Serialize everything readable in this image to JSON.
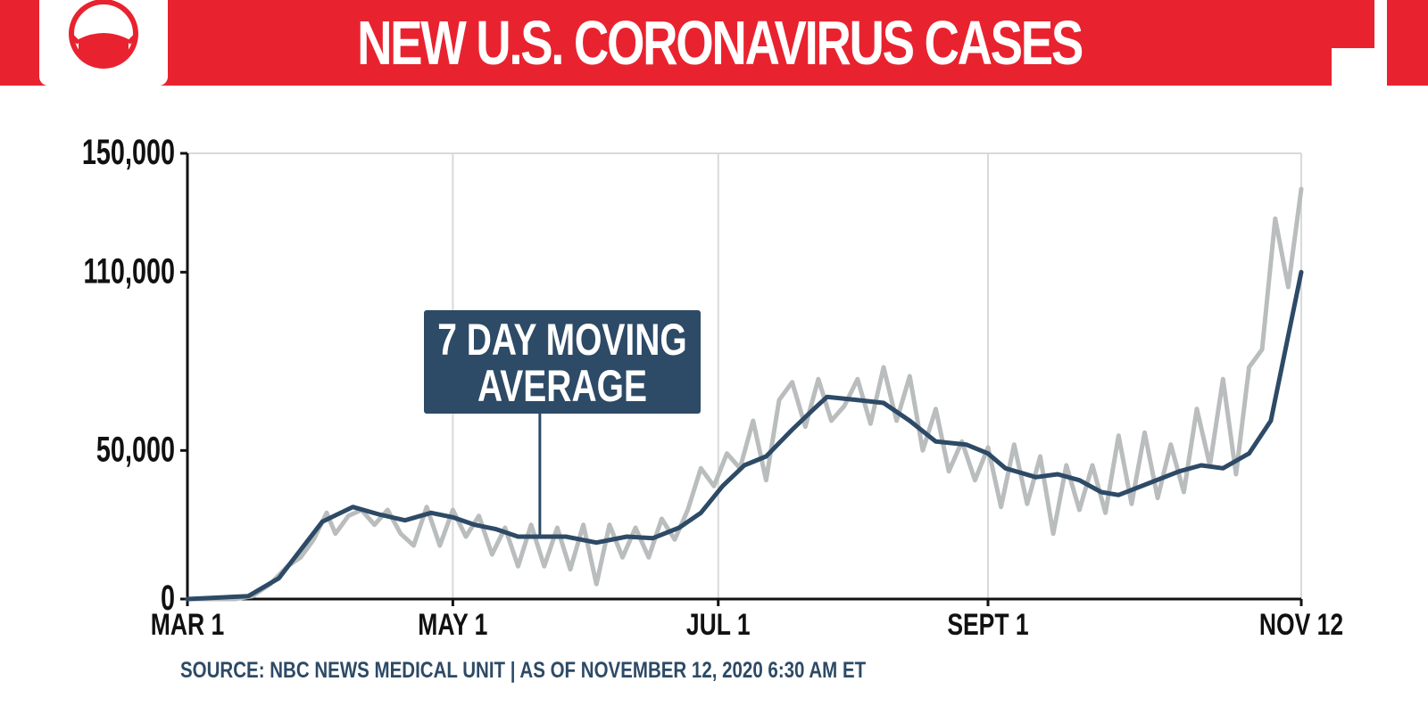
{
  "header": {
    "title": "NEW U.S. CORONAVIRUS CASES",
    "logo_icon": "face-mask-icon",
    "accent_color": "#e8232f"
  },
  "footer": {
    "source": "SOURCE: NBC NEWS MEDICAL UNIT | AS OF  NOVEMBER 12, 2020 6:30 AM ET"
  },
  "chart_data": {
    "type": "line",
    "title": "NEW U.S. CORONAVIRUS CASES",
    "xlabel": "",
    "ylabel": "",
    "ylim": [
      0,
      150000
    ],
    "xlim": [
      "2020-03-01",
      "2020-11-12"
    ],
    "grid": true,
    "x_ticks": [
      {
        "date": "2020-03-01",
        "label": "MAR 1"
      },
      {
        "date": "2020-05-01",
        "label": "MAY 1"
      },
      {
        "date": "2020-07-01",
        "label": "JUL 1"
      },
      {
        "date": "2020-09-01",
        "label": "SEPT 1"
      },
      {
        "date": "2020-11-12",
        "label": "NOV 12"
      }
    ],
    "y_ticks": [
      {
        "value": 0,
        "label": "0"
      },
      {
        "value": 50000,
        "label": "50,000"
      },
      {
        "value": 110000,
        "label": "110,000"
      },
      {
        "value": 150000,
        "label": "150,000"
      }
    ],
    "annotation": {
      "lines": [
        "7 DAY MOVING",
        "AVERAGE"
      ],
      "pointer_date": "2020-05-21",
      "pointer_value": 21000
    },
    "series": [
      {
        "role": "daily",
        "color": "#b9bdbd",
        "points": [
          [
            "2020-03-01",
            0
          ],
          [
            "2020-03-12",
            0
          ],
          [
            "2020-03-16",
            1000
          ],
          [
            "2020-03-20",
            5000
          ],
          [
            "2020-03-24",
            11000
          ],
          [
            "2020-03-27",
            14000
          ],
          [
            "2020-03-30",
            20000
          ],
          [
            "2020-04-02",
            29000
          ],
          [
            "2020-04-04",
            22000
          ],
          [
            "2020-04-07",
            28000
          ],
          [
            "2020-04-10",
            30000
          ],
          [
            "2020-04-13",
            25000
          ],
          [
            "2020-04-16",
            30000
          ],
          [
            "2020-04-19",
            22000
          ],
          [
            "2020-04-22",
            18000
          ],
          [
            "2020-04-25",
            31000
          ],
          [
            "2020-04-28",
            18000
          ],
          [
            "2020-05-01",
            30000
          ],
          [
            "2020-05-04",
            21000
          ],
          [
            "2020-05-07",
            28000
          ],
          [
            "2020-05-10",
            15000
          ],
          [
            "2020-05-13",
            24000
          ],
          [
            "2020-05-16",
            11000
          ],
          [
            "2020-05-19",
            25000
          ],
          [
            "2020-05-22",
            11000
          ],
          [
            "2020-05-25",
            24000
          ],
          [
            "2020-05-28",
            10000
          ],
          [
            "2020-05-31",
            25000
          ],
          [
            "2020-06-03",
            5000
          ],
          [
            "2020-06-06",
            25000
          ],
          [
            "2020-06-09",
            14000
          ],
          [
            "2020-06-12",
            24000
          ],
          [
            "2020-06-15",
            14000
          ],
          [
            "2020-06-18",
            27000
          ],
          [
            "2020-06-21",
            20000
          ],
          [
            "2020-06-24",
            30000
          ],
          [
            "2020-06-27",
            44000
          ],
          [
            "2020-06-30",
            38000
          ],
          [
            "2020-07-03",
            49000
          ],
          [
            "2020-07-06",
            44000
          ],
          [
            "2020-07-09",
            60000
          ],
          [
            "2020-07-12",
            40000
          ],
          [
            "2020-07-15",
            67000
          ],
          [
            "2020-07-18",
            73000
          ],
          [
            "2020-07-21",
            58000
          ],
          [
            "2020-07-24",
            74000
          ],
          [
            "2020-07-27",
            60000
          ],
          [
            "2020-07-30",
            65000
          ],
          [
            "2020-08-02",
            74000
          ],
          [
            "2020-08-05",
            59000
          ],
          [
            "2020-08-08",
            78000
          ],
          [
            "2020-08-11",
            60000
          ],
          [
            "2020-08-14",
            75000
          ],
          [
            "2020-08-17",
            50000
          ],
          [
            "2020-08-20",
            64000
          ],
          [
            "2020-08-23",
            43000
          ],
          [
            "2020-08-26",
            53000
          ],
          [
            "2020-08-29",
            40000
          ],
          [
            "2020-09-01",
            51000
          ],
          [
            "2020-09-04",
            31000
          ],
          [
            "2020-09-07",
            52000
          ],
          [
            "2020-09-10",
            32000
          ],
          [
            "2020-09-13",
            48000
          ],
          [
            "2020-09-16",
            22000
          ],
          [
            "2020-09-19",
            45000
          ],
          [
            "2020-09-22",
            30000
          ],
          [
            "2020-09-25",
            45000
          ],
          [
            "2020-09-28",
            29000
          ],
          [
            "2020-10-01",
            55000
          ],
          [
            "2020-10-04",
            32000
          ],
          [
            "2020-10-07",
            56000
          ],
          [
            "2020-10-10",
            34000
          ],
          [
            "2020-10-13",
            52000
          ],
          [
            "2020-10-16",
            36000
          ],
          [
            "2020-10-19",
            64000
          ],
          [
            "2020-10-22",
            45000
          ],
          [
            "2020-10-25",
            74000
          ],
          [
            "2020-10-28",
            42000
          ],
          [
            "2020-10-31",
            78000
          ],
          [
            "2020-11-03",
            84000
          ],
          [
            "2020-11-06",
            128000
          ],
          [
            "2020-11-09",
            105000
          ],
          [
            "2020-11-12",
            138000
          ]
        ]
      },
      {
        "role": "average",
        "color": "#2d4a66",
        "points": [
          [
            "2020-03-01",
            0
          ],
          [
            "2020-03-15",
            1000
          ],
          [
            "2020-03-22",
            7000
          ],
          [
            "2020-04-01",
            26000
          ],
          [
            "2020-04-08",
            31000
          ],
          [
            "2020-04-14",
            28500
          ],
          [
            "2020-04-20",
            26500
          ],
          [
            "2020-04-26",
            29000
          ],
          [
            "2020-05-01",
            27500
          ],
          [
            "2020-05-06",
            25000
          ],
          [
            "2020-05-11",
            23500
          ],
          [
            "2020-05-16",
            21000
          ],
          [
            "2020-05-21",
            21000
          ],
          [
            "2020-05-27",
            21000
          ],
          [
            "2020-06-03",
            19000
          ],
          [
            "2020-06-10",
            21000
          ],
          [
            "2020-06-16",
            20500
          ],
          [
            "2020-06-22",
            24000
          ],
          [
            "2020-06-27",
            29000
          ],
          [
            "2020-07-02",
            38000
          ],
          [
            "2020-07-07",
            45000
          ],
          [
            "2020-07-12",
            48000
          ],
          [
            "2020-07-18",
            57000
          ],
          [
            "2020-07-23",
            64000
          ],
          [
            "2020-07-26",
            68000
          ],
          [
            "2020-08-02",
            67000
          ],
          [
            "2020-08-08",
            66000
          ],
          [
            "2020-08-14",
            60000
          ],
          [
            "2020-08-20",
            53000
          ],
          [
            "2020-08-27",
            52000
          ],
          [
            "2020-09-01",
            49000
          ],
          [
            "2020-09-05",
            44000
          ],
          [
            "2020-09-12",
            41000
          ],
          [
            "2020-09-17",
            42000
          ],
          [
            "2020-09-22",
            40000
          ],
          [
            "2020-09-27",
            36000
          ],
          [
            "2020-10-01",
            35000
          ],
          [
            "2020-10-08",
            39000
          ],
          [
            "2020-10-15",
            43000
          ],
          [
            "2020-10-20",
            45000
          ],
          [
            "2020-10-25",
            44000
          ],
          [
            "2020-10-31",
            49000
          ],
          [
            "2020-11-05",
            60000
          ],
          [
            "2020-11-12",
            110000
          ]
        ]
      }
    ]
  }
}
